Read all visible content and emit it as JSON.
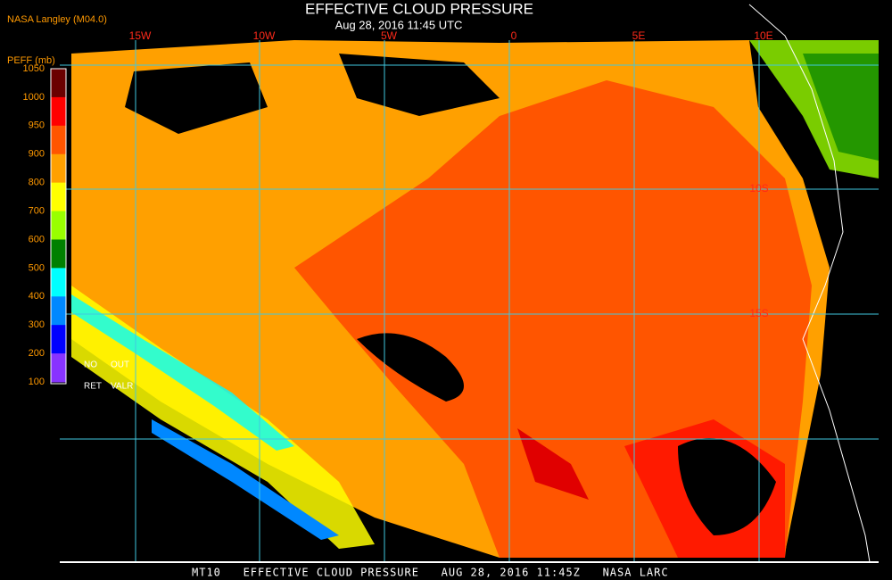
{
  "header": {
    "title": "EFFECTIVE CLOUD PRESSURE",
    "subtitle": "Aug 28, 2016 11:45 UTC",
    "source": "NASA Langley (M04.0)"
  },
  "map": {
    "longitude_labels": [
      "15W",
      "10W",
      "5W",
      "0",
      "5E",
      "10E"
    ],
    "latitude_labels": [
      "10S",
      "15S"
    ]
  },
  "colorbar": {
    "title": "PEFF (mb)",
    "ticks": [
      1050,
      1000,
      950,
      900,
      800,
      700,
      600,
      500,
      400,
      300,
      200,
      100
    ],
    "colors": [
      "#6a0000",
      "#ff0000",
      "#ff5500",
      "#ffa000",
      "#ffff00",
      "#99ff00",
      "#008000",
      "#00ffff",
      "#0088ff",
      "#0000ff",
      "#8833ff"
    ],
    "notes": [
      "NO",
      "OUT",
      "RET",
      "VALR"
    ]
  },
  "footer": "MT10   EFFECTIVE CLOUD PRESSURE   AUG 28, 2016 11:45Z   NASA LARC"
}
